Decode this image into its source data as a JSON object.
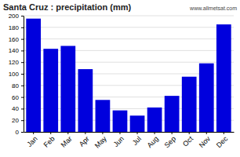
{
  "chart_data": {
    "type": "bar",
    "title": "Santa Cruz : precipitation (mm)",
    "categories": [
      "Jan",
      "Feb",
      "Mar",
      "Apr",
      "May",
      "Jun",
      "Jul",
      "Aug",
      "Sep",
      "Oct",
      "Nov",
      "Dec"
    ],
    "values": [
      195,
      143,
      148,
      108,
      55,
      37,
      28,
      42,
      62,
      95,
      118,
      185
    ],
    "color": "#0000dd",
    "ylim": [
      0,
      200
    ],
    "yticks": [
      0,
      20,
      40,
      60,
      80,
      100,
      120,
      140,
      160,
      180,
      200
    ],
    "grid": true,
    "annotations": [
      "www.allmetsat.com"
    ]
  }
}
